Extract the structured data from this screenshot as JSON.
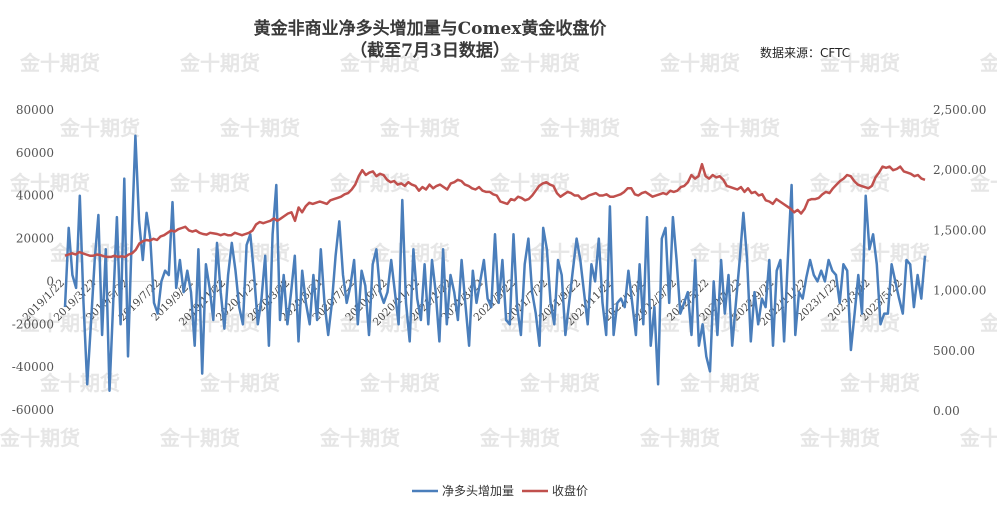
{
  "watermark": "金十期货",
  "chart_data": {
    "type": "line",
    "title": "黄金非商业净多头增加量与Comex黄金收盘价",
    "subtitle": "（截至7月3日数据）",
    "source_label": "数据来源：CFTC",
    "legend_position": "bottom",
    "grid": false,
    "y_left": {
      "min": -60000,
      "max": 80000,
      "ticks": [
        "80000",
        "60000",
        "40000",
        "20000",
        "0",
        "-20000",
        "-40000",
        "-60000"
      ]
    },
    "y_right": {
      "min": 0,
      "max": 2500,
      "ticks": [
        "2,500.00",
        "2,000.00",
        "1,500.00",
        "1,000.00",
        "500.00",
        "0.00"
      ]
    },
    "x_start": "2019-01-22",
    "x_end": "2023-07-03",
    "x_ticks": [
      "2019/1/22",
      "2019/3/22",
      "2019/5/22",
      "2019/7/22",
      "2019/9/22",
      "2019/11/22",
      "2020/1/22",
      "2020/3/22",
      "2020/5/22",
      "2020/7/22",
      "2020/9/22",
      "2020/11/22",
      "2021/1/22",
      "2021/3/22",
      "2021/5/22",
      "2021/7/22",
      "2021/9/22",
      "2021/11/22",
      "2022/1/22",
      "2022/3/22",
      "2022/5/22",
      "2022/7/22",
      "2022/9/22",
      "2022/11/22",
      "2023/1/22",
      "2023/3/22",
      "2023/5/22"
    ],
    "series": [
      {
        "name": "净多头增加量",
        "axis": "left",
        "color": "#4a7ebb",
        "values": [
          -12000,
          25000,
          3000,
          -3000,
          40000,
          -10000,
          -48000,
          -20000,
          10000,
          31000,
          -25000,
          15000,
          -51000,
          -10000,
          30000,
          -20000,
          48000,
          -35000,
          20000,
          68000,
          28000,
          10000,
          32000,
          20000,
          -10000,
          -15000,
          0,
          5000,
          3000,
          37000,
          -3000,
          10000,
          -5000,
          5000,
          -5000,
          -30000,
          15000,
          -43000,
          8000,
          -3000,
          -18000,
          18000,
          -5000,
          -22000,
          3000,
          18000,
          5000,
          -12000,
          -20000,
          17000,
          22000,
          3000,
          -20000,
          -8000,
          12000,
          -30000,
          22000,
          45000,
          -18000,
          3000,
          -20000,
          -5000,
          12000,
          -28000,
          5000,
          -10000,
          -20000,
          3000,
          -18000,
          15000,
          -10000,
          -25000,
          -10000,
          12000,
          28000,
          3000,
          -10000,
          -2000,
          10000,
          -20000,
          5000,
          -2000,
          -25000,
          8000,
          15000,
          -5000,
          -10000,
          -5000,
          10000,
          -5000,
          -20000,
          38000,
          -10000,
          -28000,
          15000,
          -8000,
          -18000,
          8000,
          -20000,
          10000,
          -5000,
          -28000,
          15000,
          -20000,
          3000,
          -5000,
          -18000,
          10000,
          -10000,
          -30000,
          5000,
          -10000,
          0,
          10000,
          -8000,
          -12000,
          22000,
          -10000,
          10000,
          -18000,
          -20000,
          22000,
          -12000,
          -25000,
          8000,
          20000,
          -5000,
          -15000,
          -30000,
          25000,
          15000,
          -10000,
          -20000,
          10000,
          3000,
          -25000,
          -10000,
          5000,
          20000,
          10000,
          -5000,
          -20000,
          8000,
          0,
          20000,
          -10000,
          -25000,
          35000,
          -25000,
          -10000,
          -8000,
          -12000,
          5000,
          -10000,
          -25000,
          8000,
          -20000,
          30000,
          -30000,
          -12000,
          -48000,
          20000,
          25000,
          -10000,
          30000,
          10000,
          -15000,
          -10000,
          -5000,
          -25000,
          10000,
          -30000,
          -20000,
          -35000,
          -42000,
          0,
          -25000,
          10000,
          -15000,
          3000,
          -30000,
          -10000,
          10000,
          32000,
          10000,
          -28000,
          -5000,
          -20000,
          -8000,
          -12000,
          10000,
          -30000,
          5000,
          10000,
          -28000,
          10000,
          45000,
          -25000,
          -5000,
          -8000,
          2000,
          10000,
          3000,
          0,
          5000,
          0,
          10000,
          5000,
          3000,
          -10000,
          8000,
          5000,
          -32000,
          -15000,
          3000,
          -15000,
          40000,
          15000,
          22000,
          8000,
          -20000,
          -15000,
          -15000,
          8000,
          0,
          -8000,
          -15000,
          10000,
          8000,
          -12000,
          3000,
          -8000,
          12000
        ]
      },
      {
        "name": "收盘价",
        "axis": "right",
        "color": "#c0504d",
        "values": [
          1290,
          1300,
          1310,
          1300,
          1320,
          1310,
          1300,
          1290,
          1290,
          1300,
          1295,
          1285,
          1280,
          1280,
          1290,
          1280,
          1285,
          1280,
          1300,
          1310,
          1340,
          1390,
          1410,
          1420,
          1415,
          1430,
          1420,
          1450,
          1460,
          1480,
          1500,
          1490,
          1510,
          1520,
          1530,
          1500,
          1490,
          1500,
          1480,
          1470,
          1465,
          1480,
          1475,
          1470,
          1460,
          1470,
          1460,
          1460,
          1480,
          1470,
          1460,
          1470,
          1480,
          1500,
          1550,
          1570,
          1560,
          1570,
          1580,
          1600,
          1580,
          1600,
          1620,
          1640,
          1650,
          1580,
          1690,
          1650,
          1700,
          1730,
          1720,
          1730,
          1740,
          1730,
          1720,
          1750,
          1760,
          1770,
          1780,
          1800,
          1810,
          1840,
          1880,
          1950,
          2000,
          1960,
          1980,
          1990,
          1950,
          1970,
          1960,
          1920,
          1900,
          1910,
          1880,
          1890,
          1870,
          1900,
          1880,
          1870,
          1830,
          1860,
          1840,
          1880,
          1850,
          1870,
          1880,
          1860,
          1840,
          1890,
          1900,
          1920,
          1910,
          1880,
          1870,
          1850,
          1840,
          1860,
          1830,
          1820,
          1820,
          1800,
          1790,
          1740,
          1730,
          1720,
          1760,
          1750,
          1780,
          1770,
          1750,
          1760,
          1790,
          1830,
          1870,
          1890,
          1900,
          1880,
          1870,
          1810,
          1780,
          1800,
          1820,
          1810,
          1790,
          1790,
          1760,
          1770,
          1790,
          1800,
          1810,
          1790,
          1790,
          1800,
          1780,
          1780,
          1790,
          1800,
          1820,
          1850,
          1850,
          1800,
          1790,
          1810,
          1820,
          1800,
          1780,
          1790,
          1800,
          1810,
          1800,
          1830,
          1820,
          1830,
          1860,
          1870,
          1900,
          1960,
          1930,
          1950,
          2050,
          1950,
          1930,
          1960,
          1940,
          1950,
          1920,
          1870,
          1860,
          1850,
          1840,
          1860,
          1820,
          1850,
          1810,
          1820,
          1790,
          1800,
          1750,
          1740,
          1720,
          1760,
          1740,
          1720,
          1700,
          1680,
          1650,
          1670,
          1640,
          1680,
          1750,
          1760,
          1760,
          1770,
          1800,
          1820,
          1810,
          1850,
          1880,
          1910,
          1930,
          1960,
          1950,
          1910,
          1880,
          1870,
          1860,
          1850,
          1870,
          1940,
          1980,
          2030,
          2020,
          2030,
          2000,
          2010,
          2030,
          1990,
          1980,
          1970,
          1950,
          1960,
          1930,
          1920
        ]
      }
    ]
  }
}
